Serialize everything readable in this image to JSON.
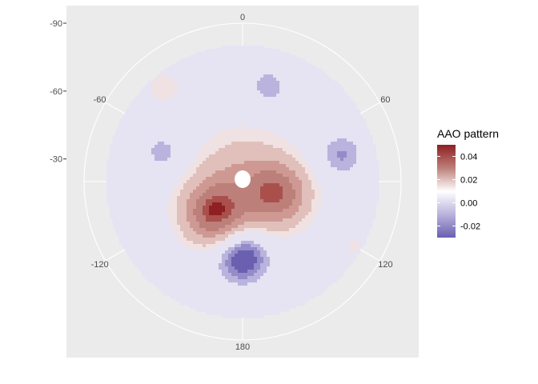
{
  "chart_data": {
    "type": "heatmap",
    "subtype": "filled-contour-polar",
    "projection": "polar",
    "field_name": "AAO pattern",
    "legend": {
      "title": "AAO pattern",
      "placement": "right",
      "ticks": [
        "0.04",
        "0.02",
        "0.00",
        "-0.02"
      ],
      "range": [
        -0.03,
        0.05
      ]
    },
    "theta_axis": {
      "ticks": [
        {
          "angle": 0,
          "label": "0"
        },
        {
          "angle": 60,
          "label": "60"
        },
        {
          "angle": 120,
          "label": "120"
        },
        {
          "angle": 180,
          "label": "180"
        },
        {
          "angle": 240,
          "label": "-120"
        },
        {
          "angle": 300,
          "label": "-60"
        }
      ]
    },
    "r_axis": {
      "ticks": [
        "-30",
        "-60",
        "-90"
      ],
      "range": [
        -90,
        -20
      ]
    },
    "levels": [
      -0.025,
      -0.02,
      -0.015,
      -0.01,
      -0.005,
      0.0,
      0.005,
      0.01,
      0.015,
      0.02,
      0.025,
      0.03,
      0.035,
      0.04,
      0.045
    ],
    "level_colors": [
      "#6a5fb0",
      "#948cc9",
      "#b9b3dd",
      "#e6e3f2",
      "#f0e2e2",
      "#e1c0bc",
      "#cf9993",
      "#bd7f79",
      "#a9504d",
      "#8e1f23",
      "#ffffff"
    ],
    "field_components": [
      {
        "kind": "background",
        "value": -0.006
      },
      {
        "kind": "peak",
        "angle": 222,
        "radius_frac": 0.32,
        "value": 0.038,
        "spread": 0.16
      },
      {
        "kind": "peak",
        "angle": 110,
        "radius_frac": 0.28,
        "value": 0.032,
        "spread": 0.16
      },
      {
        "kind": "peak",
        "angle": 0,
        "radius_frac": 0.0,
        "value": 0.02,
        "spread": 0.26
      },
      {
        "kind": "trough",
        "angle": 180,
        "radius_frac": 0.55,
        "value": -0.028,
        "spread": 0.14
      },
      {
        "kind": "trough",
        "angle": 75,
        "radius_frac": 0.75,
        "value": -0.015,
        "spread": 0.12
      },
      {
        "kind": "trough",
        "angle": 15,
        "radius_frac": 0.72,
        "value": -0.012,
        "spread": 0.12
      },
      {
        "kind": "trough",
        "angle": 290,
        "radius_frac": 0.62,
        "value": -0.012,
        "spread": 0.12
      },
      {
        "kind": "ridge",
        "angle": 320,
        "radius_frac": 0.9,
        "value": 0.008,
        "spread": 0.12
      },
      {
        "kind": "ridge",
        "angle": 120,
        "radius_frac": 0.95,
        "value": 0.008,
        "spread": 0.06
      },
      {
        "kind": "hole",
        "angle": 0,
        "radius_frac": 0.0,
        "value": 0.02,
        "spread": 0.06
      }
    ]
  }
}
